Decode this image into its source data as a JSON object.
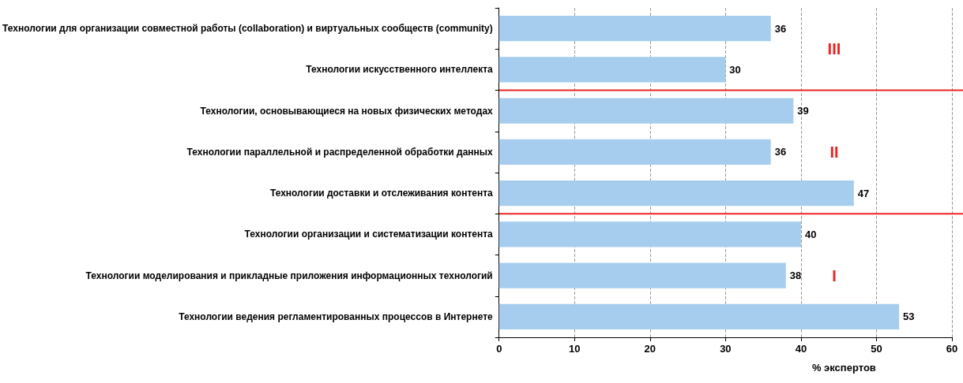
{
  "chart_data": {
    "type": "bar",
    "orientation": "horizontal",
    "categories": [
      "Технологии для организации совместной работы (collaboration) и виртуальных сообществ (community)",
      "Технологии искусственного интеллекта",
      "Технологии, основывающиеся на новых физических методах",
      "Технологии параллельной и распределенной обработки данных",
      "Технологии доставки и отслеживания контента",
      "Технологии организации и систематизации контента",
      "Технологии моделирования и прикладные приложения информационных технологий",
      "Технологии ведения регламентированных процессов в Интернете"
    ],
    "values": [
      36,
      30,
      39,
      36,
      47,
      40,
      38,
      53
    ],
    "color": "#a6cdee",
    "data_labels": true,
    "xlabel": "% экспертов",
    "xlim": [
      0,
      60
    ],
    "xticks": [
      0,
      10,
      20,
      30,
      40,
      50,
      60
    ],
    "grid": "x",
    "annotations": [
      "III",
      "II",
      "I"
    ]
  }
}
